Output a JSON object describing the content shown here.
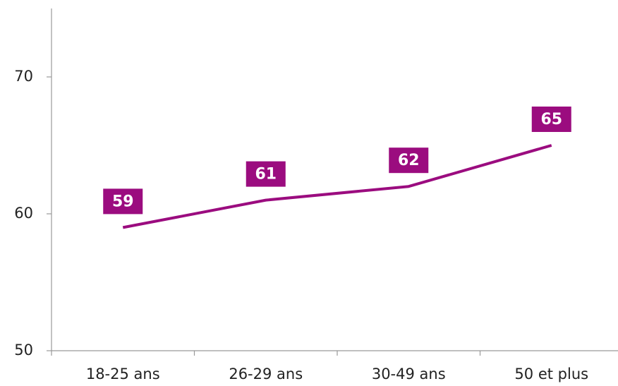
{
  "chart_data": {
    "type": "line",
    "categories": [
      "18-25 ans",
      "26-29 ans",
      "30-49 ans",
      "50 et plus"
    ],
    "values": [
      59,
      61,
      62,
      65
    ],
    "color": "#9b0c7f",
    "ylim": [
      50,
      75
    ],
    "yticks": [
      50,
      60,
      70
    ],
    "grid": false
  }
}
